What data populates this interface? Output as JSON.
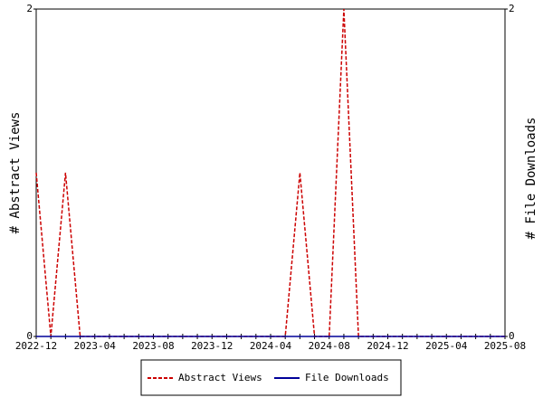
{
  "chart_data": {
    "type": "line",
    "x": [
      "2022-12",
      "2023-01",
      "2023-02",
      "2023-03",
      "2023-04",
      "2023-05",
      "2023-06",
      "2023-07",
      "2023-08",
      "2023-09",
      "2023-10",
      "2023-11",
      "2023-12",
      "2024-01",
      "2024-02",
      "2024-03",
      "2024-04",
      "2024-05",
      "2024-06",
      "2024-07",
      "2024-08",
      "2024-09",
      "2024-10",
      "2024-11",
      "2024-12",
      "2025-01",
      "2025-02",
      "2025-03",
      "2025-04",
      "2025-05",
      "2025-06",
      "2025-07",
      "2025-08"
    ],
    "xticks": [
      "2022-12",
      "2023-04",
      "2023-08",
      "2023-12",
      "2024-04",
      "2024-08",
      "2024-12",
      "2025-04",
      "2025-08"
    ],
    "y_label": "# Abstract Views",
    "y2_label": "# File Downloads",
    "ylim": [
      0,
      2
    ],
    "yticks": [
      0,
      2
    ],
    "y2lim": [
      0,
      2
    ],
    "y2ticks": [
      0,
      2
    ],
    "series": [
      {
        "name": "Abstract Views",
        "color": "#cc0000",
        "dashed": true,
        "values": [
          1,
          0,
          1,
          0,
          0,
          0,
          0,
          0,
          0,
          0,
          0,
          0,
          0,
          0,
          0,
          0,
          0,
          0,
          1,
          0,
          0,
          2,
          0,
          0,
          0,
          0,
          0,
          0,
          0,
          0,
          0,
          0,
          0
        ]
      },
      {
        "name": "File Downloads",
        "color": "#000099",
        "axis": "y2",
        "values": [
          0,
          0,
          0,
          0,
          0,
          0,
          0,
          0,
          0,
          0,
          0,
          0,
          0,
          0,
          0,
          0,
          0,
          0,
          0,
          0,
          0,
          0,
          0,
          0,
          0,
          0,
          0,
          0,
          0,
          0,
          0,
          0,
          0
        ]
      }
    ]
  }
}
